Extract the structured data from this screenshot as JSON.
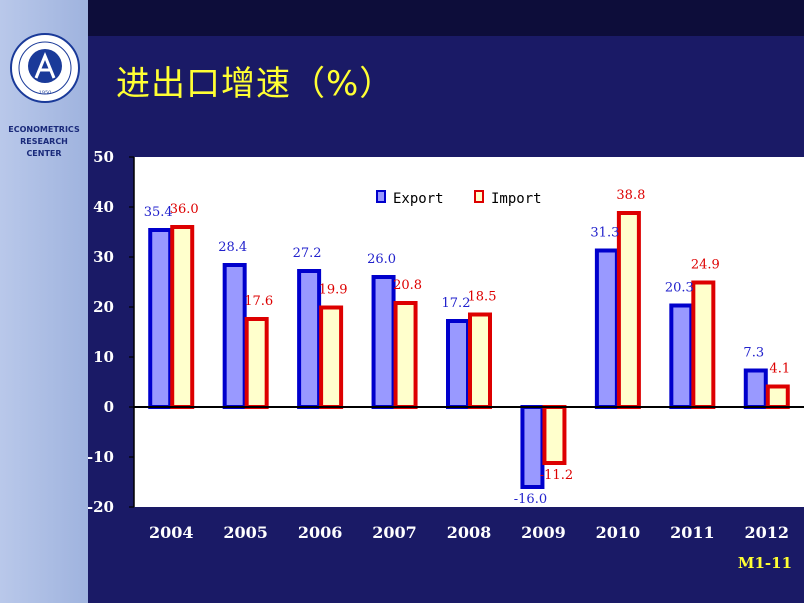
{
  "slide": {
    "title": "进出口增速（%）",
    "center_name": [
      "ECONOMETRICS",
      "RESEARCH",
      "CENTER"
    ],
    "slide_number": "M1-11",
    "logo_text": "1950"
  },
  "colors": {
    "background": "#1a1a66",
    "title": "#ffff33",
    "export_fill": "#9999ff",
    "export_border": "#0000cc",
    "import_fill": "#ffffcc",
    "import_border": "#dd0000"
  },
  "chart_data": {
    "type": "bar",
    "title": "",
    "xlabel": "",
    "ylabel": "",
    "categories": [
      "2004",
      "2005",
      "2006",
      "2007",
      "2008",
      "2009",
      "2010",
      "2011",
      "2012"
    ],
    "series": [
      {
        "name": "Export",
        "values": [
          35.4,
          28.4,
          27.2,
          26.0,
          17.2,
          -16.0,
          31.3,
          20.3,
          7.3
        ],
        "labels": [
          "35.4",
          "28.4",
          "27.2",
          "26.0",
          "17.2",
          "-16.0",
          "31.3",
          "20.3",
          "7.3"
        ]
      },
      {
        "name": "Import",
        "values": [
          36.0,
          17.6,
          19.9,
          20.8,
          18.5,
          -11.2,
          38.8,
          24.9,
          4.1
        ],
        "labels": [
          "36.0",
          "17.6",
          "19.9",
          "20.8",
          "18.5",
          "-11.2",
          "38.8",
          "24.9",
          "4.1"
        ]
      }
    ],
    "ylim": [
      -20,
      50
    ],
    "yticks": [
      50,
      40,
      30,
      20,
      10,
      0,
      -10,
      -20
    ],
    "ytick_labels": [
      "50",
      "40",
      "30",
      "20",
      "10",
      "0",
      "-10",
      "-20"
    ],
    "grid": false,
    "legend_position": "top-center"
  }
}
